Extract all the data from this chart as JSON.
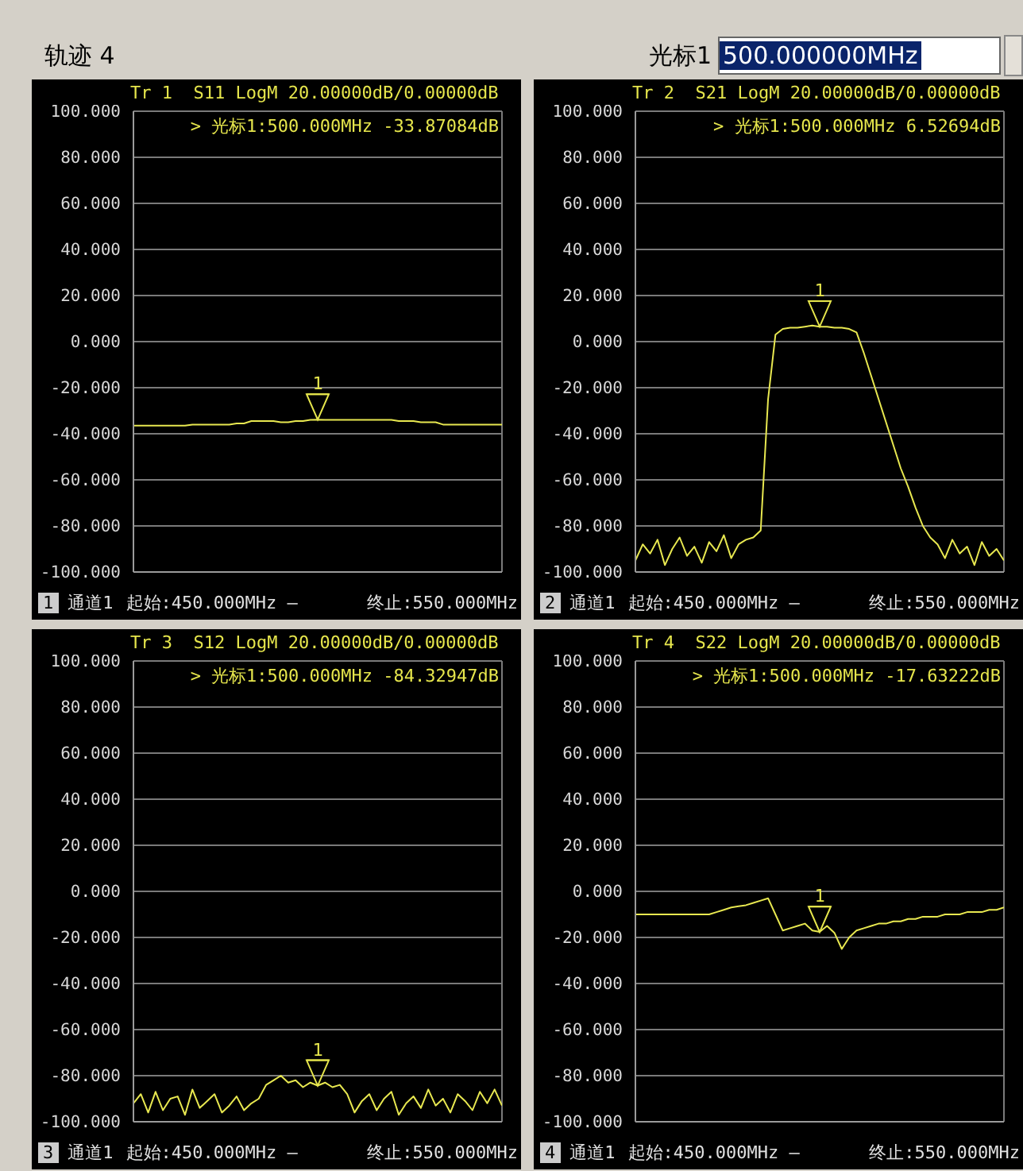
{
  "chart_data": [
    {
      "type": "other",
      "annotations": [
        "轨迹 4",
        "光标1",
        "500.000000MHz"
      ]
    },
    {
      "type": "line",
      "title": "Tr 1  S11 LogM 20.00000dB/0.00000dB",
      "grid": true,
      "tick_labels": "y",
      "categories": [
        null,
        null,
        null,
        null,
        null,
        null,
        null,
        null,
        null,
        null,
        null,
        null,
        null,
        null,
        null,
        null,
        null,
        null,
        null,
        null,
        null,
        null,
        null,
        null,
        null,
        null,
        null,
        null,
        null,
        null,
        null,
        null,
        null,
        null,
        null,
        null,
        null,
        null,
        null,
        null,
        null,
        null,
        null,
        null,
        null,
        null,
        null,
        null,
        null,
        null,
        null
      ],
      "ylim": [
        -100,
        100
      ],
      "yticks": [
        {
          "value": 100,
          "label": "100.000"
        },
        {
          "value": 80,
          "label": "80.000"
        },
        {
          "value": 60,
          "label": "60.000"
        },
        {
          "value": 40,
          "label": "40.000"
        },
        {
          "value": 20,
          "label": "20.000"
        },
        {
          "value": 0,
          "label": "0.000"
        },
        {
          "value": -20,
          "label": "-20.000"
        },
        {
          "value": -40,
          "label": "-40.000"
        },
        {
          "value": -60,
          "label": "-60.000"
        },
        {
          "value": -80,
          "label": "-80.000"
        },
        {
          "value": -100,
          "label": "-100.000"
        }
      ],
      "series": [
        {
          "color": "#e8e850",
          "values": [
            -36.5,
            -36.5,
            -36.5,
            -36.5,
            -36.5,
            -36.5,
            -36.5,
            -36.5,
            -36,
            -36,
            -36,
            -36,
            -36,
            -36,
            -35.5,
            -35.5,
            -34.5,
            -34.5,
            -34.5,
            -34.5,
            -35,
            -35,
            -34.5,
            -34.5,
            -34,
            -33.9,
            -34,
            -34,
            -34,
            -34,
            -34,
            -34,
            -34,
            -34,
            -34,
            -34,
            -34.5,
            -34.5,
            -34.5,
            -35,
            -35,
            -35,
            -36,
            -36,
            -36,
            -36,
            -36,
            -36,
            -36,
            -36,
            -36
          ]
        }
      ],
      "annotations": [
        "> 光标1:500.000MHz -33.87084dB",
        {
          "text": "1",
          "y": -33.87084
        },
        "1",
        "通道1",
        "起始:450.000MHz —",
        "终止:550.000MHz"
      ]
    },
    {
      "type": "line",
      "title": "Tr 2  S21 LogM 20.00000dB/0.00000dB",
      "grid": true,
      "tick_labels": "y",
      "categories": [
        null,
        null,
        null,
        null,
        null,
        null,
        null,
        null,
        null,
        null,
        null,
        null,
        null,
        null,
        null,
        null,
        null,
        null,
        null,
        null,
        null,
        null,
        null,
        null,
        null,
        null,
        null,
        null,
        null,
        null,
        null,
        null,
        null,
        null,
        null,
        null,
        null,
        null,
        null,
        null,
        null,
        null,
        null,
        null,
        null,
        null,
        null,
        null,
        null,
        null,
        null
      ],
      "ylim": [
        -100,
        100
      ],
      "yticks": [
        {
          "value": 100,
          "label": "100.000"
        },
        {
          "value": 80,
          "label": "80.000"
        },
        {
          "value": 60,
          "label": "60.000"
        },
        {
          "value": 40,
          "label": "40.000"
        },
        {
          "value": 20,
          "label": "20.000"
        },
        {
          "value": 0,
          "label": "0.000"
        },
        {
          "value": -20,
          "label": "-20.000"
        },
        {
          "value": -40,
          "label": "-40.000"
        },
        {
          "value": -60,
          "label": "-60.000"
        },
        {
          "value": -80,
          "label": "-80.000"
        },
        {
          "value": -100,
          "label": "-100.000"
        }
      ],
      "series": [
        {
          "color": "#e8e850",
          "values": [
            -95,
            -88,
            -92,
            -86,
            -97,
            -90,
            -85,
            -93,
            -89,
            -96,
            -87,
            -91,
            -84,
            -94,
            -88,
            -86,
            -85,
            -82,
            -25,
            3,
            5.5,
            6,
            6,
            6.5,
            7,
            6.5,
            6.5,
            6,
            6,
            5.5,
            4,
            -5,
            -15,
            -25,
            -35,
            -45,
            -55,
            -63,
            -72,
            -80,
            -85,
            -88,
            -94,
            -86,
            -92,
            -89,
            -97,
            -87,
            -93,
            -90,
            -95
          ]
        }
      ],
      "annotations": [
        "> 光标1:500.000MHz 6.52694dB",
        {
          "text": "1",
          "y": 6.52694
        },
        "2",
        "通道1",
        "起始:450.000MHz —",
        "终止:550.000MHz"
      ]
    },
    {
      "type": "line",
      "title": "Tr 3  S12 LogM 20.00000dB/0.00000dB",
      "grid": true,
      "tick_labels": "y",
      "categories": [
        null,
        null,
        null,
        null,
        null,
        null,
        null,
        null,
        null,
        null,
        null,
        null,
        null,
        null,
        null,
        null,
        null,
        null,
        null,
        null,
        null,
        null,
        null,
        null,
        null,
        null,
        null,
        null,
        null,
        null,
        null,
        null,
        null,
        null,
        null,
        null,
        null,
        null,
        null,
        null,
        null,
        null,
        null,
        null,
        null,
        null,
        null,
        null,
        null,
        null,
        null
      ],
      "ylim": [
        -100,
        100
      ],
      "yticks": [
        {
          "value": 100,
          "label": "100.000"
        },
        {
          "value": 80,
          "label": "80.000"
        },
        {
          "value": 60,
          "label": "60.000"
        },
        {
          "value": 40,
          "label": "40.000"
        },
        {
          "value": 20,
          "label": "20.000"
        },
        {
          "value": 0,
          "label": "0.000"
        },
        {
          "value": -20,
          "label": "-20.000"
        },
        {
          "value": -40,
          "label": "-40.000"
        },
        {
          "value": -60,
          "label": "-60.000"
        },
        {
          "value": -80,
          "label": "-80.000"
        },
        {
          "value": -100,
          "label": "-100.000"
        }
      ],
      "series": [
        {
          "color": "#e8e850",
          "values": [
            -92,
            -88,
            -96,
            -87,
            -95,
            -90,
            -89,
            -97,
            -86,
            -94,
            -91,
            -88,
            -96,
            -93,
            -89,
            -95,
            -92,
            -90,
            -84,
            -82,
            -80,
            -83,
            -82,
            -85,
            -83,
            -84.3,
            -83,
            -85,
            -84,
            -88,
            -96,
            -91,
            -88,
            -95,
            -90,
            -87,
            -97,
            -92,
            -89,
            -94,
            -86,
            -93,
            -90,
            -96,
            -88,
            -91,
            -95,
            -87,
            -92,
            -86,
            -93
          ]
        }
      ],
      "annotations": [
        "> 光标1:500.000MHz -84.32947dB",
        {
          "text": "1",
          "y": -84.32947
        },
        "3",
        "通道1",
        "起始:450.000MHz —",
        "终止:550.000MHz"
      ]
    },
    {
      "type": "line",
      "title": "Tr 4  S22 LogM 20.00000dB/0.00000dB",
      "grid": true,
      "tick_labels": "y",
      "categories": [
        null,
        null,
        null,
        null,
        null,
        null,
        null,
        null,
        null,
        null,
        null,
        null,
        null,
        null,
        null,
        null,
        null,
        null,
        null,
        null,
        null,
        null,
        null,
        null,
        null,
        null,
        null,
        null,
        null,
        null,
        null,
        null,
        null,
        null,
        null,
        null,
        null,
        null,
        null,
        null,
        null,
        null,
        null,
        null,
        null,
        null,
        null,
        null,
        null,
        null,
        null
      ],
      "ylim": [
        -100,
        100
      ],
      "yticks": [
        {
          "value": 100,
          "label": "100.000"
        },
        {
          "value": 80,
          "label": "80.000"
        },
        {
          "value": 60,
          "label": "60.000"
        },
        {
          "value": 40,
          "label": "40.000"
        },
        {
          "value": 20,
          "label": "20.000"
        },
        {
          "value": 0,
          "label": "0.000"
        },
        {
          "value": -20,
          "label": "-20.000"
        },
        {
          "value": -40,
          "label": "-40.000"
        },
        {
          "value": -60,
          "label": "-60.000"
        },
        {
          "value": -80,
          "label": "-80.000"
        },
        {
          "value": -100,
          "label": "-100.000"
        }
      ],
      "series": [
        {
          "color": "#e8e850",
          "values": [
            -10,
            -10,
            -10,
            -10,
            -10,
            -10,
            -10,
            -10,
            -10,
            -10,
            -10,
            -9,
            -8,
            -7,
            -6.5,
            -6,
            -5,
            -4,
            -3,
            -10,
            -17,
            -16,
            -15,
            -14,
            -17,
            -17.6,
            -15,
            -18,
            -25,
            -20,
            -17,
            -16,
            -15,
            -14,
            -14,
            -13,
            -13,
            -12,
            -12,
            -11,
            -11,
            -11,
            -10,
            -10,
            -10,
            -9,
            -9,
            -9,
            -8,
            -8,
            -7
          ]
        }
      ],
      "annotations": [
        "> 光标1:500.000MHz -17.63222dB",
        {
          "text": "1",
          "y": -17.63222
        },
        "4",
        "通道1",
        "起始:450.000MHz —",
        "终止:550.000MHz"
      ]
    }
  ]
}
